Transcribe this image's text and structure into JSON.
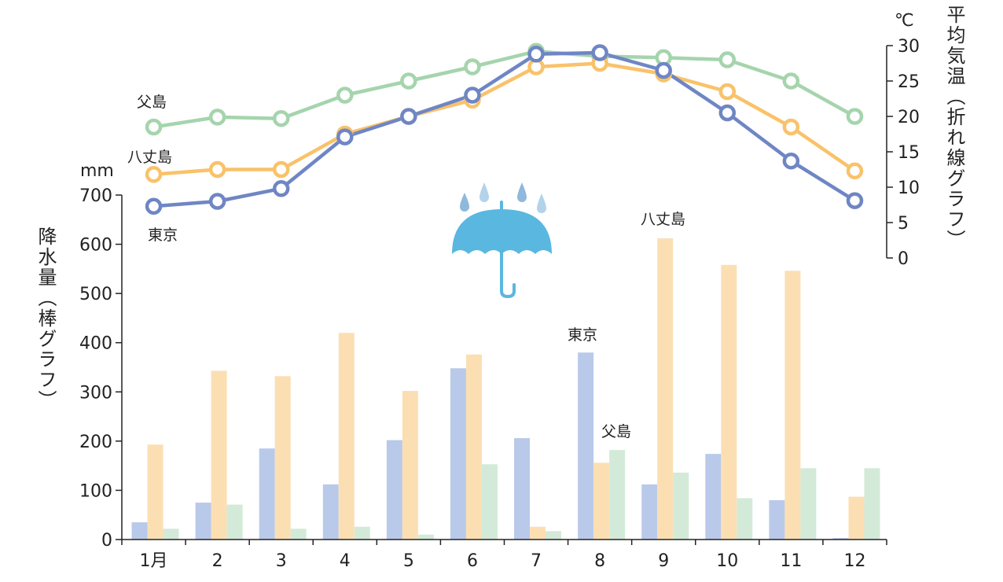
{
  "chart_data": {
    "type": "bar+line",
    "categories": [
      "1月",
      "2",
      "3",
      "4",
      "5",
      "6",
      "7",
      "8",
      "9",
      "10",
      "11",
      "12"
    ],
    "precipitation": {
      "unit": "mm",
      "ylabel": "降水量（棒グラフ）",
      "ylim": [
        0,
        700
      ],
      "yticks": [
        0,
        100,
        200,
        300,
        400,
        500,
        600,
        700
      ],
      "series": [
        {
          "name": "東京",
          "color": "#b9c9ea",
          "values": [
            35,
            75,
            185,
            112,
            202,
            348,
            206,
            380,
            112,
            174,
            80,
            3
          ]
        },
        {
          "name": "八丈島",
          "color": "#fbdfb3",
          "values": [
            193,
            343,
            332,
            420,
            302,
            376,
            26,
            156,
            612,
            558,
            546,
            87
          ]
        },
        {
          "name": "父島",
          "color": "#d3ead8",
          "values": [
            22,
            71,
            22,
            26,
            10,
            153,
            17,
            182,
            136,
            84,
            145,
            145
          ]
        }
      ]
    },
    "temperature": {
      "unit": "℃",
      "ylabel": "平均気温（折れ線グラフ）",
      "ylim": [
        0,
        30
      ],
      "yticks": [
        0,
        5,
        10,
        15,
        20,
        25,
        30
      ],
      "series": [
        {
          "name": "東京",
          "color": "#6f86c4",
          "values": [
            7.3,
            8.0,
            9.8,
            17.1,
            20.0,
            23.0,
            28.8,
            29.0,
            26.5,
            20.5,
            13.7,
            8.1
          ]
        },
        {
          "name": "八丈島",
          "color": "#f9c26a",
          "values": [
            11.8,
            12.5,
            12.5,
            17.5,
            20.0,
            22.3,
            27.0,
            27.5,
            26.0,
            23.5,
            18.5,
            12.3
          ]
        },
        {
          "name": "父島",
          "color": "#a5d4ad",
          "values": [
            18.5,
            19.9,
            19.7,
            23.0,
            25.0,
            27.0,
            29.2,
            28.5,
            28.3,
            28.0,
            25.0,
            20.0
          ]
        }
      ]
    }
  }
}
